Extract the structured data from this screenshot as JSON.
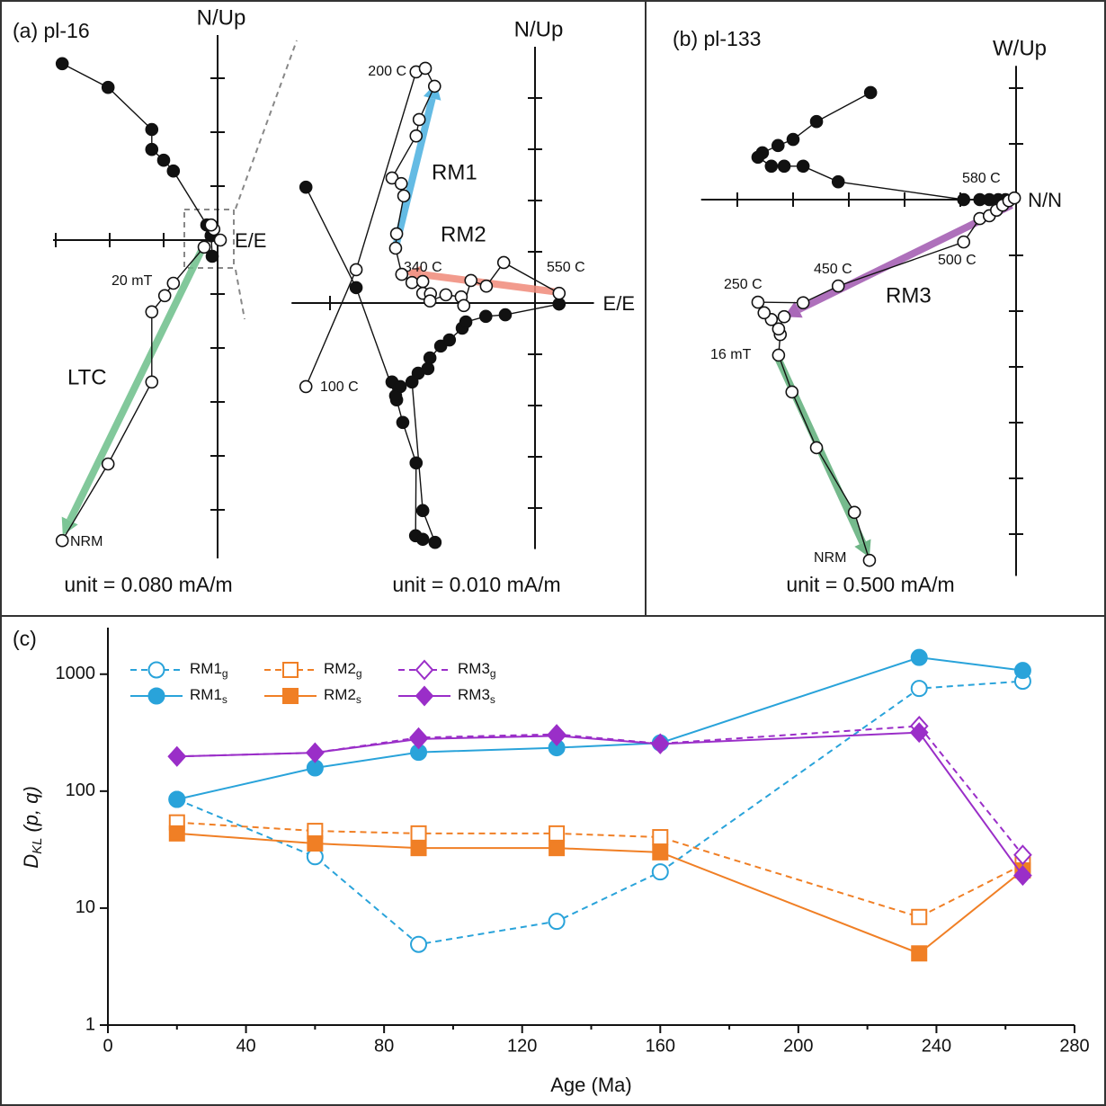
{
  "chart_data": [
    {
      "type": "zijderveld",
      "title": "(a) pl-16",
      "ylabel": "N/Up",
      "xlabel": "E/E",
      "unit_label": "unit = 0.080 mA/m",
      "xlim": [
        -3.05,
        0.15
      ],
      "ylim": [
        -5.9,
        3.8
      ],
      "xticks": [
        -3,
        -2,
        -1
      ],
      "yticks": [
        -5,
        -4,
        -3,
        -2,
        -1,
        1,
        2,
        3
      ],
      "series": [
        {
          "filled": true,
          "x": [
            -2.88,
            -2.03,
            -1.22,
            -1.22,
            -1.0,
            -0.82,
            -0.2,
            -0.12,
            -0.1
          ],
          "y": [
            3.27,
            2.83,
            2.05,
            1.68,
            1.48,
            1.28,
            0.28,
            0.08,
            -0.3
          ]
        },
        {
          "filled": false,
          "x": [
            -2.88,
            -2.03,
            -1.22,
            -1.22,
            -0.98,
            -0.82,
            -0.25,
            -0.07,
            -0.12,
            0.05
          ],
          "y": [
            -5.57,
            -4.15,
            -2.63,
            -1.33,
            -1.03,
            -0.8,
            -0.13,
            0.2,
            0.28,
            0.0
          ]
        }
      ],
      "components": [
        {
          "name": "LTC",
          "color": "#6dbf8a",
          "x": [
            -0.23,
            -2.87
          ],
          "y": [
            -0.05,
            -5.47
          ]
        }
      ],
      "annotations": [
        "20 mT",
        "NRM"
      ]
    },
    {
      "type": "zijderveld",
      "ylabel": "N/Up",
      "xlabel": "E/E",
      "unit_label": "unit = 0.010 mA/m",
      "xlim": [
        -4.75,
        1.15
      ],
      "ylim": [
        -4.8,
        5.0
      ],
      "xticks": [
        -4
      ],
      "yticks": [
        -4,
        -3,
        -2,
        -1,
        1,
        2,
        3,
        4
      ],
      "series": [
        {
          "filled": true,
          "x": [
            -4.47,
            -3.49,
            -2.7,
            -2.79,
            -2.63,
            -2.72,
            -2.58,
            -2.32,
            -2.33,
            -2.19,
            -1.95,
            -2.19,
            -2.4,
            -2.28,
            -2.09,
            -2.05,
            -1.84,
            -1.67,
            -1.42,
            -1.35,
            -0.96,
            -0.58,
            0.47
          ],
          "y": [
            2.26,
            0.3,
            -1.89,
            -1.54,
            -1.63,
            -1.81,
            -2.33,
            -3.12,
            -4.54,
            -4.61,
            -4.67,
            -4.05,
            -1.54,
            -1.37,
            -1.28,
            -1.07,
            -0.84,
            -0.72,
            -0.49,
            -0.37,
            -0.26,
            -0.23,
            -0.02
          ]
        },
        {
          "filled": false,
          "x": [
            -4.47,
            -3.49,
            -2.32,
            -2.14,
            -1.96,
            -2.26,
            -2.32,
            -2.79,
            -2.61,
            -2.56,
            -2.7,
            -2.72,
            -2.6,
            -2.4,
            -2.19,
            -2.19,
            -2.04,
            -2.05,
            -1.74,
            -1.44,
            -1.39,
            -1.25,
            -0.95,
            -0.61,
            0.47
          ],
          "y": [
            -1.63,
            0.65,
            4.51,
            4.58,
            4.23,
            3.58,
            3.26,
            2.44,
            2.33,
            2.09,
            1.35,
            1.07,
            0.56,
            0.4,
            0.42,
            0.19,
            0.18,
            0.04,
            0.16,
            0.12,
            -0.05,
            0.44,
            0.33,
            0.79,
            0.19
          ]
        }
      ],
      "components": [
        {
          "name": "RM1",
          "color": "#4ab0e0",
          "x": [
            -2.72,
            -1.93
          ],
          "y": [
            1.09,
            4.3
          ]
        },
        {
          "name": "RM2",
          "color": "#f08a7a",
          "x": [
            0.47,
            -2.54
          ],
          "y": [
            0.21,
            0.6
          ]
        }
      ],
      "annotations": [
        "200 C",
        "340 C",
        "550 C",
        "100 C"
      ]
    },
    {
      "type": "zijderveld",
      "title": "(b) pl-133",
      "ylabel": "W/Up",
      "xlabel": "N/N",
      "unit_label": "unit = 0.500 mA/m",
      "xlim": [
        -5.65,
        0.05
      ],
      "ylim": [
        -6.75,
        2.4
      ],
      "xticks": [
        -5,
        -4,
        -3,
        -2,
        -1
      ],
      "yticks": [
        -6,
        -5,
        -4,
        -3,
        -2,
        -1,
        1,
        2
      ],
      "series": [
        {
          "filled": true,
          "x": [
            -2.61,
            -3.58,
            -4.0,
            -4.27,
            -4.55,
            -4.63,
            -4.39,
            -4.16,
            -3.82,
            -3.19,
            -0.94,
            -0.65,
            -0.48,
            -0.32,
            -0.19
          ],
          "y": [
            1.92,
            1.4,
            1.08,
            0.97,
            0.84,
            0.76,
            0.6,
            0.6,
            0.6,
            0.32,
            0,
            0,
            0,
            0,
            0
          ]
        },
        {
          "filled": false,
          "x": [
            -2.63,
            -2.9,
            -3.58,
            -4.02,
            -4.26,
            -4.23,
            -4.26,
            -4.16,
            -4.39,
            -4.52,
            -4.63,
            -3.82,
            -3.19,
            -0.94,
            -0.65,
            -0.48,
            -0.35,
            -0.24,
            -0.13,
            -0.03
          ],
          "y": [
            -6.47,
            -5.61,
            -4.45,
            -3.45,
            -2.79,
            -2.42,
            -2.32,
            -2.1,
            -2.15,
            -2.03,
            -1.84,
            -1.85,
            -1.55,
            -0.76,
            -0.34,
            -0.29,
            -0.19,
            -0.1,
            -0.02,
            0.03
          ]
        }
      ],
      "components": [
        {
          "name": "RM3",
          "color": "#a058b0",
          "x": [
            -0.08,
            -4.16
          ],
          "y": [
            -0.1,
            -2.1
          ]
        },
        {
          "color": "#5fae7a",
          "x": [
            -4.32,
            -2.63
          ],
          "y": [
            -2.74,
            -6.42
          ]
        }
      ],
      "annotations": [
        "580 C",
        "450 C",
        "500 C",
        "250 C",
        "16 mT",
        "NRM"
      ]
    },
    {
      "type": "line",
      "title": "(c)",
      "xlabel": "Age (Ma)",
      "ylabel": [
        "D",
        "KL",
        "(p, q)"
      ],
      "ylog": true,
      "x": [
        20,
        60,
        90,
        130,
        160,
        235,
        265
      ],
      "xlim": [
        0,
        280
      ],
      "ylim": [
        1,
        2500
      ],
      "xticks": [
        0,
        40,
        80,
        120,
        160,
        200,
        240,
        280
      ],
      "xminor_ticks": [
        20,
        60,
        100,
        140,
        180,
        220,
        260
      ],
      "yticks": [
        1,
        10,
        100,
        1000
      ],
      "series": [
        {
          "name": "RM1",
          "subscript": "g",
          "color": "#29a3da",
          "marker": "circle",
          "filled": false,
          "dashed": true,
          "values": [
            85,
            27.5,
            4.9,
            7.7,
            20.4,
            755,
            870
          ]
        },
        {
          "name": "RM1",
          "subscript": "s",
          "color": "#29a3da",
          "marker": "circle",
          "filled": true,
          "dashed": false,
          "values": [
            85,
            158,
            215,
            235,
            258,
            1390,
            1075
          ]
        },
        {
          "name": "RM2",
          "subscript": "g",
          "color": "#f07f25",
          "marker": "square",
          "filled": false,
          "dashed": true,
          "values": [
            54,
            45.7,
            43.5,
            43.5,
            40.4,
            8.4,
            23.5
          ]
        },
        {
          "name": "RM2",
          "subscript": "s",
          "color": "#f07f25",
          "marker": "square",
          "filled": true,
          "dashed": false,
          "values": [
            43.5,
            35.7,
            32.6,
            32.6,
            30,
            4.1,
            21
          ]
        },
        {
          "name": "RM3",
          "subscript": "g",
          "color": "#9a2ec8",
          "marker": "diamond",
          "filled": false,
          "dashed": true,
          "values": [
            198,
            213,
            287,
            306,
            255,
            360,
            28.5
          ]
        },
        {
          "name": "RM3",
          "subscript": "s",
          "color": "#9a2ec8",
          "marker": "diamond",
          "filled": true,
          "dashed": false,
          "values": [
            198,
            213,
            279,
            297,
            253,
            317,
            19
          ]
        }
      ]
    }
  ]
}
